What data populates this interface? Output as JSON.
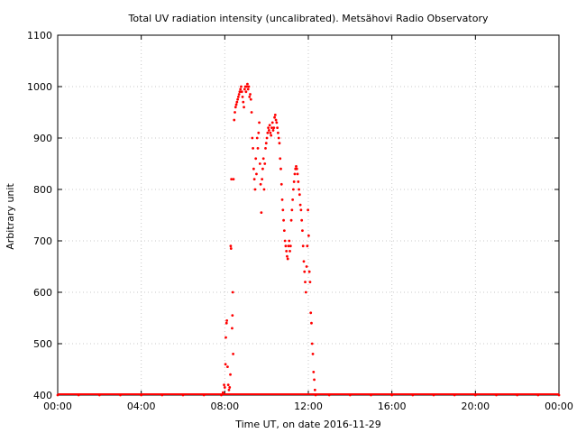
{
  "chart_data": {
    "type": "scatter",
    "title": "Total UV radiation intensity (uncalibrated). Metsähovi Radio Observatory",
    "xlabel": "Time UT, on date 2016-11-29",
    "ylabel": "Arbitrary unit",
    "xlim": [
      "00:00",
      "24:00"
    ],
    "ylim": [
      400,
      1100
    ],
    "grid": true,
    "marker_color": "#ff0000",
    "x_ticks": [
      "00:00",
      "04:00",
      "08:00",
      "12:00",
      "16:00",
      "20:00",
      "00:00"
    ],
    "y_ticks": [
      400,
      500,
      600,
      700,
      800,
      900,
      1000,
      1100
    ],
    "series": [
      {
        "points": [
          [
            "00:00",
            400
          ],
          [
            "01:00",
            400
          ],
          [
            "02:00",
            400
          ],
          [
            "03:00",
            400
          ],
          [
            "04:00",
            400
          ],
          [
            "05:00",
            400
          ],
          [
            "06:00",
            400
          ],
          [
            "07:00",
            400
          ],
          [
            "07:50",
            400
          ],
          [
            "07:55",
            405
          ],
          [
            "07:58",
            420
          ],
          [
            "08:00",
            415
          ],
          [
            "08:02",
            460
          ],
          [
            "08:03",
            512
          ],
          [
            "08:05",
            540
          ],
          [
            "08:06",
            545
          ],
          [
            "08:08",
            455
          ],
          [
            "08:10",
            420
          ],
          [
            "08:12",
            410
          ],
          [
            "08:14",
            415
          ],
          [
            "08:16",
            440
          ],
          [
            "08:17",
            690
          ],
          [
            "08:18",
            685
          ],
          [
            "08:19",
            820
          ],
          [
            "08:21",
            530
          ],
          [
            "08:22",
            555
          ],
          [
            "08:23",
            600
          ],
          [
            "08:24",
            480
          ],
          [
            "08:25",
            820
          ],
          [
            "08:27",
            935
          ],
          [
            "08:29",
            950
          ],
          [
            "08:31",
            960
          ],
          [
            "08:33",
            965
          ],
          [
            "08:35",
            970
          ],
          [
            "08:37",
            975
          ],
          [
            "08:39",
            980
          ],
          [
            "08:41",
            985
          ],
          [
            "08:43",
            990
          ],
          [
            "08:45",
            995
          ],
          [
            "08:47",
            1000
          ],
          [
            "08:49",
            990
          ],
          [
            "08:51",
            980
          ],
          [
            "08:53",
            970
          ],
          [
            "08:55",
            960
          ],
          [
            "08:57",
            995
          ],
          [
            "08:59",
            1000
          ],
          [
            "09:01",
            990
          ],
          [
            "09:03",
            1000
          ],
          [
            "09:05",
            1005
          ],
          [
            "09:07",
            995
          ],
          [
            "09:09",
            1000
          ],
          [
            "09:11",
            980
          ],
          [
            "09:13",
            985
          ],
          [
            "09:15",
            975
          ],
          [
            "09:17",
            950
          ],
          [
            "09:19",
            900
          ],
          [
            "09:21",
            880
          ],
          [
            "09:23",
            840
          ],
          [
            "09:25",
            820
          ],
          [
            "09:27",
            800
          ],
          [
            "09:29",
            860
          ],
          [
            "09:31",
            830
          ],
          [
            "09:33",
            900
          ],
          [
            "09:35",
            880
          ],
          [
            "09:37",
            910
          ],
          [
            "09:39",
            930
          ],
          [
            "09:41",
            850
          ],
          [
            "09:43",
            810
          ],
          [
            "09:45",
            755
          ],
          [
            "09:47",
            820
          ],
          [
            "09:49",
            840
          ],
          [
            "09:51",
            860
          ],
          [
            "09:53",
            800
          ],
          [
            "09:55",
            850
          ],
          [
            "09:57",
            880
          ],
          [
            "09:59",
            890
          ],
          [
            "10:01",
            900
          ],
          [
            "10:03",
            910
          ],
          [
            "10:05",
            920
          ],
          [
            "10:07",
            915
          ],
          [
            "10:09",
            925
          ],
          [
            "10:11",
            910
          ],
          [
            "10:13",
            905
          ],
          [
            "10:15",
            920
          ],
          [
            "10:17",
            930
          ],
          [
            "10:19",
            915
          ],
          [
            "10:21",
            920
          ],
          [
            "10:23",
            940
          ],
          [
            "10:25",
            945
          ],
          [
            "10:27",
            935
          ],
          [
            "10:29",
            930
          ],
          [
            "10:31",
            920
          ],
          [
            "10:33",
            910
          ],
          [
            "10:35",
            900
          ],
          [
            "10:37",
            890
          ],
          [
            "10:39",
            860
          ],
          [
            "10:41",
            840
          ],
          [
            "10:43",
            810
          ],
          [
            "10:45",
            780
          ],
          [
            "10:47",
            760
          ],
          [
            "10:49",
            740
          ],
          [
            "10:51",
            720
          ],
          [
            "10:53",
            700
          ],
          [
            "10:55",
            690
          ],
          [
            "10:57",
            680
          ],
          [
            "10:59",
            670
          ],
          [
            "11:01",
            665
          ],
          [
            "11:03",
            690
          ],
          [
            "11:05",
            700
          ],
          [
            "11:07",
            680
          ],
          [
            "11:09",
            690
          ],
          [
            "11:11",
            740
          ],
          [
            "11:13",
            760
          ],
          [
            "11:15",
            780
          ],
          [
            "11:17",
            800
          ],
          [
            "11:19",
            815
          ],
          [
            "11:21",
            830
          ],
          [
            "11:23",
            840
          ],
          [
            "11:25",
            845
          ],
          [
            "11:27",
            840
          ],
          [
            "11:29",
            830
          ],
          [
            "11:31",
            815
          ],
          [
            "11:33",
            800
          ],
          [
            "11:35",
            790
          ],
          [
            "11:37",
            770
          ],
          [
            "11:39",
            760
          ],
          [
            "11:41",
            740
          ],
          [
            "11:43",
            720
          ],
          [
            "11:45",
            690
          ],
          [
            "11:47",
            660
          ],
          [
            "11:49",
            640
          ],
          [
            "11:51",
            620
          ],
          [
            "11:53",
            600
          ],
          [
            "11:55",
            650
          ],
          [
            "11:57",
            690
          ],
          [
            "11:59",
            760
          ],
          [
            "12:01",
            710
          ],
          [
            "12:03",
            640
          ],
          [
            "12:05",
            620
          ],
          [
            "12:07",
            560
          ],
          [
            "12:09",
            540
          ],
          [
            "12:11",
            500
          ],
          [
            "12:13",
            480
          ],
          [
            "12:15",
            445
          ],
          [
            "12:17",
            430
          ],
          [
            "12:19",
            410
          ],
          [
            "12:21",
            400
          ],
          [
            "13:00",
            400
          ],
          [
            "14:00",
            400
          ],
          [
            "15:00",
            400
          ],
          [
            "16:00",
            400
          ],
          [
            "17:00",
            400
          ],
          [
            "18:00",
            400
          ],
          [
            "19:00",
            400
          ],
          [
            "20:00",
            400
          ],
          [
            "21:00",
            400
          ],
          [
            "22:00",
            400
          ],
          [
            "23:00",
            400
          ],
          [
            "24:00",
            400
          ]
        ]
      }
    ]
  }
}
